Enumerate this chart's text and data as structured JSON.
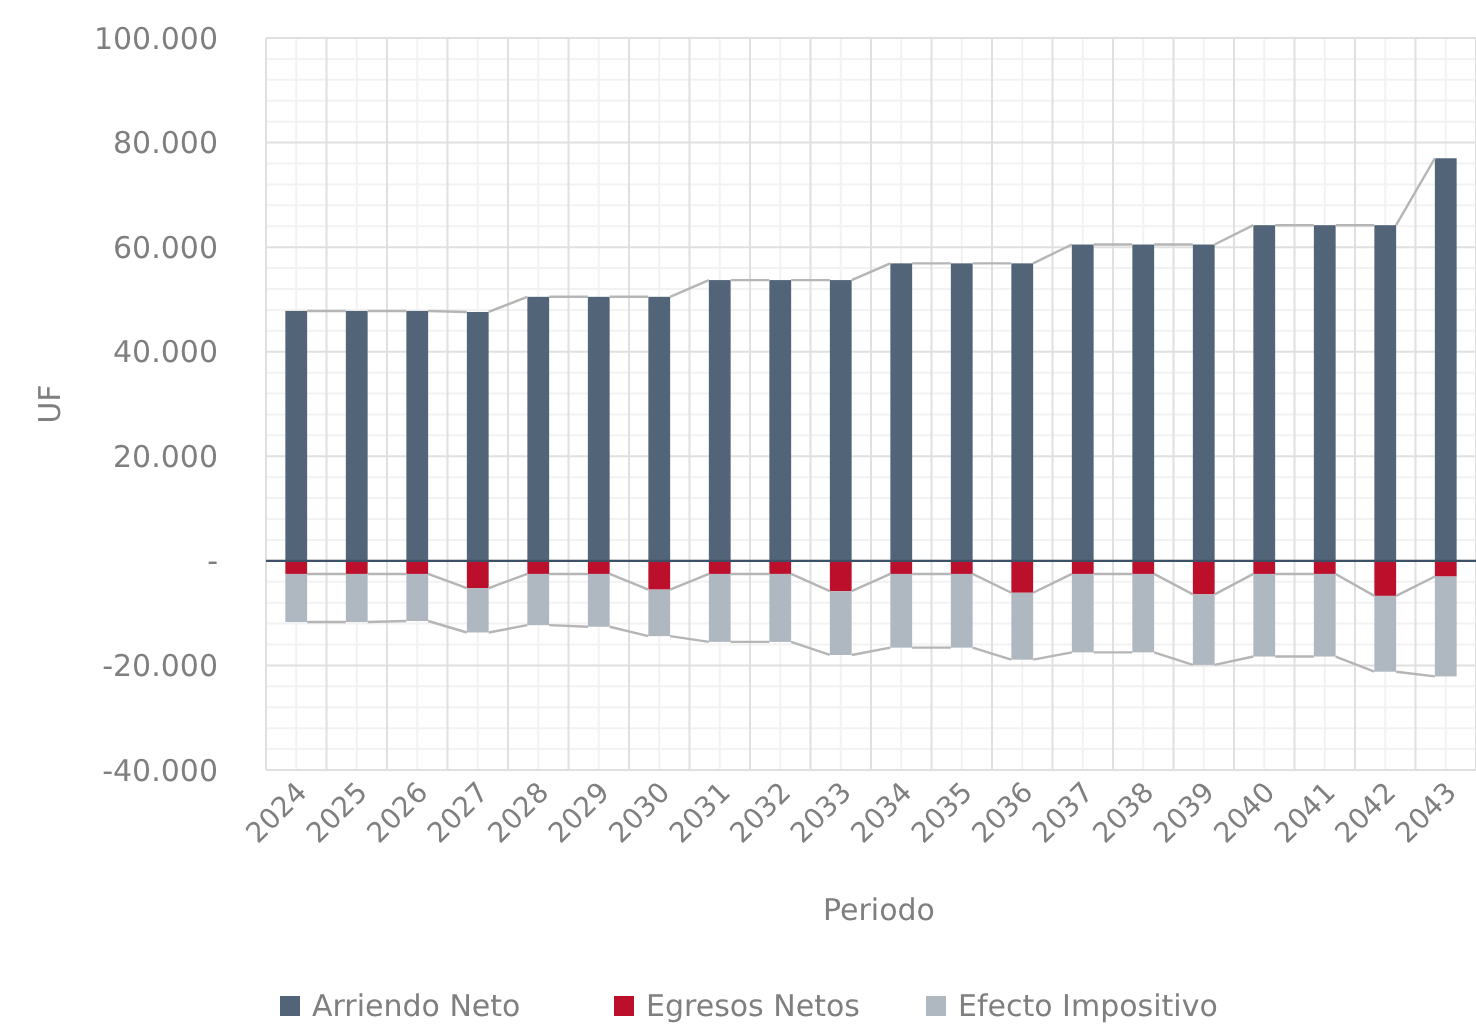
{
  "chart_data": {
    "type": "bar",
    "stacked": true,
    "xlabel": "Periodo",
    "ylabel": "UF",
    "categories": [
      "2024",
      "2025",
      "2026",
      "2027",
      "2028",
      "2029",
      "2030",
      "2031",
      "2032",
      "2033",
      "2034",
      "2035",
      "2036",
      "2037",
      "2038",
      "2039",
      "2040",
      "2041",
      "2042",
      "2043"
    ],
    "series": [
      {
        "name": "Arriendo Neto",
        "color": "#526578",
        "values": [
          47800,
          47800,
          47800,
          47600,
          50500,
          50500,
          50500,
          53700,
          53700,
          53700,
          56900,
          56900,
          56900,
          60500,
          60500,
          60500,
          64200,
          64200,
          64200,
          77000
        ]
      },
      {
        "name": "Egresos Netos",
        "color": "#bb0f2b",
        "values": [
          -2500,
          -2500,
          -2500,
          -5200,
          -2500,
          -2500,
          -5500,
          -2500,
          -2500,
          -5800,
          -2500,
          -2500,
          -6100,
          -2500,
          -2500,
          -6400,
          -2500,
          -2500,
          -6700,
          -3000
        ]
      },
      {
        "name": "Efecto Impositivo",
        "color": "#afb7c1",
        "values": [
          -9200,
          -9200,
          -9000,
          -8500,
          -9800,
          -10100,
          -8900,
          -13000,
          -13000,
          -12200,
          -14100,
          -14100,
          -12800,
          -15000,
          -15000,
          -13500,
          -15800,
          -15800,
          -14500,
          -19100
        ]
      }
    ],
    "ylim": [
      -40000,
      100000
    ],
    "yticks": [
      {
        "value": -40000,
        "label": "-40.000"
      },
      {
        "value": -20000,
        "label": "-20.000"
      },
      {
        "value": 0,
        "label": "-"
      },
      {
        "value": 20000,
        "label": "20.000"
      },
      {
        "value": 40000,
        "label": "40.000"
      },
      {
        "value": 60000,
        "label": "60.000"
      },
      {
        "value": 80000,
        "label": "80.000"
      },
      {
        "value": 100000,
        "label": "100.000"
      }
    ],
    "ref_lines": [
      {
        "axis": "y",
        "value": 0,
        "color": "#3d5166"
      }
    ],
    "grid": true,
    "legend": "bottom"
  }
}
